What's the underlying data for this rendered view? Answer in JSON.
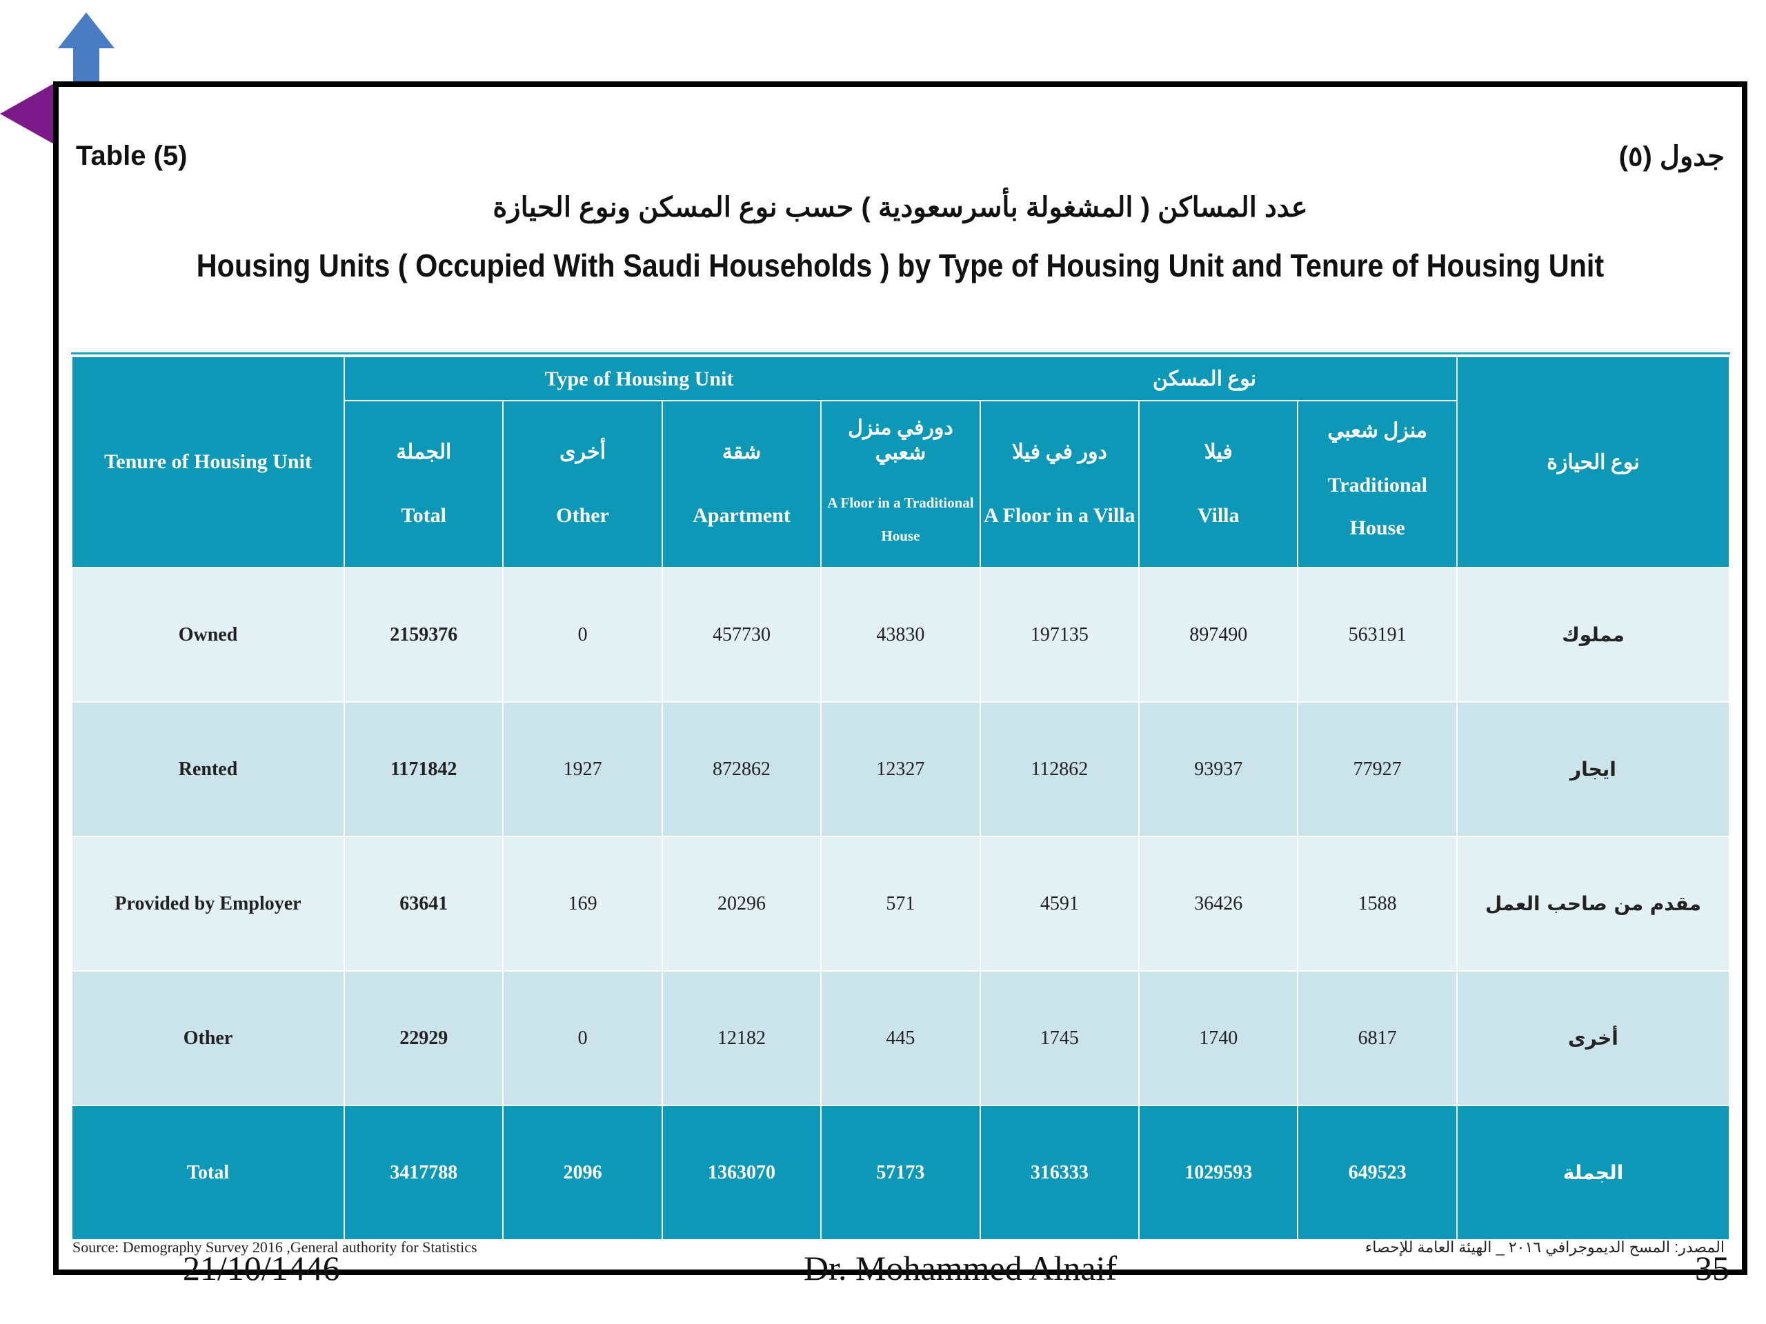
{
  "colors": {
    "header_bg": "#0c98b6",
    "row_light": "#e4f1f4",
    "row_dark": "#cbe3ea",
    "up_arrow": "#4a7cc4",
    "left_arrow": "#7d1a8a"
  },
  "icons": {
    "up": "up-arrow-icon",
    "left": "left-arrow-icon"
  },
  "slide": {
    "table_label_en": "Table (5)",
    "table_label_ar": "جدول (٥)",
    "title_ar": "عدد المساكن ( المشغولة بأسرسعودية ) حسب نوع المسكن ونوع الحيازة",
    "title_en": "Housing Units ( Occupied With Saudi Households ) by Type of Housing Unit and Tenure of Housing Unit",
    "source_en": "Source: Demography Survey 2016 ,General authority for Statistics",
    "source_ar": "المصدر: المسح الديموجرافي ٢٠١٦ _ الهيئة العامة للإحصاء",
    "footer_date": "21/10/1446",
    "footer_name": "Dr. Mohammed Alnaif",
    "footer_page": "35"
  },
  "table": {
    "tenure_header_en": "Tenure of Housing Unit",
    "tenure_header_ar": "نوع الحيازة",
    "type_header_en": "Type of Housing Unit",
    "type_header_ar": "نوع المسكن",
    "columns": [
      {
        "ar": "الجملة",
        "en": "Total"
      },
      {
        "ar": "أخرى",
        "en": "Other"
      },
      {
        "ar": "شقة",
        "en": "Apartment"
      },
      {
        "ar": "دورفي منزل شعبي",
        "en": "A Floor in a Traditional House"
      },
      {
        "ar": "دور في فيلا",
        "en": "A Floor in a Villa"
      },
      {
        "ar": "فيلا",
        "en": "Villa"
      },
      {
        "ar": "منزل شعبي",
        "en": "Traditional House"
      }
    ],
    "rows": [
      {
        "en": "Owned",
        "ar": "مملوك",
        "values": [
          "2159376",
          "0",
          "457730",
          "43830",
          "197135",
          "897490",
          "563191"
        ]
      },
      {
        "en": "Rented",
        "ar": "ايجار",
        "values": [
          "1171842",
          "1927",
          "872862",
          "12327",
          "112862",
          "93937",
          "77927"
        ]
      },
      {
        "en": "Provided by Employer",
        "ar": "مقدم من صاحب العمل",
        "values": [
          "63641",
          "169",
          "20296",
          "571",
          "4591",
          "36426",
          "1588"
        ]
      },
      {
        "en": "Other",
        "ar": "أخرى",
        "values": [
          "22929",
          "0",
          "12182",
          "445",
          "1745",
          "1740",
          "6817"
        ]
      }
    ],
    "total_row": {
      "en": "Total",
      "ar": "الجملة",
      "values": [
        "3417788",
        "2096",
        "1363070",
        "57173",
        "316333",
        "1029593",
        "649523"
      ]
    }
  }
}
